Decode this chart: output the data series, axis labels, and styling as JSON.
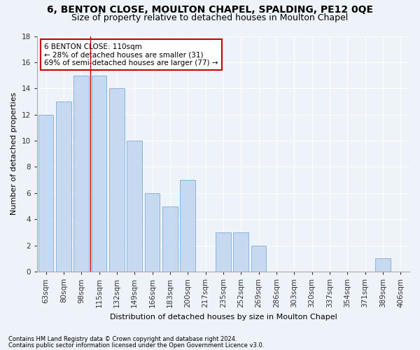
{
  "title1": "6, BENTON CLOSE, MOULTON CHAPEL, SPALDING, PE12 0QE",
  "title2": "Size of property relative to detached houses in Moulton Chapel",
  "xlabel": "Distribution of detached houses by size in Moulton Chapel",
  "ylabel": "Number of detached properties",
  "categories": [
    "63sqm",
    "80sqm",
    "98sqm",
    "115sqm",
    "132sqm",
    "149sqm",
    "166sqm",
    "183sqm",
    "200sqm",
    "217sqm",
    "235sqm",
    "252sqm",
    "269sqm",
    "286sqm",
    "303sqm",
    "320sqm",
    "337sqm",
    "354sqm",
    "371sqm",
    "389sqm",
    "406sqm"
  ],
  "values": [
    12,
    13,
    15,
    15,
    14,
    10,
    6,
    5,
    7,
    0,
    3,
    3,
    2,
    0,
    0,
    0,
    0,
    0,
    0,
    1,
    0
  ],
  "bar_color": "#c6d9f0",
  "bar_edge_color": "#7bafd4",
  "property_line_x": 2.5,
  "annotation_line1": "6 BENTON CLOSE: 110sqm",
  "annotation_line2": "← 28% of detached houses are smaller (31)",
  "annotation_line3": "69% of semi-detached houses are larger (77) →",
  "annotation_box_color": "#ffffff",
  "annotation_box_edge": "#cc0000",
  "ylim": [
    0,
    18
  ],
  "yticks": [
    0,
    2,
    4,
    6,
    8,
    10,
    12,
    14,
    16,
    18
  ],
  "footer1": "Contains HM Land Registry data © Crown copyright and database right 2024.",
  "footer2": "Contains public sector information licensed under the Open Government Licence v3.0.",
  "bg_color": "#eef2f9",
  "grid_color": "#ffffff",
  "title_fontsize": 10,
  "subtitle_fontsize": 9,
  "axis_fontsize": 8,
  "tick_fontsize": 7.5,
  "footer_fontsize": 6
}
